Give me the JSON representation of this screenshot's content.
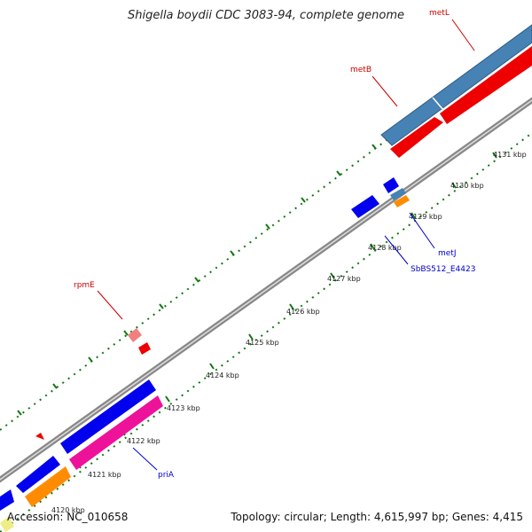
{
  "title": "Shigella boydii CDC 3083-94, complete genome",
  "footer": {
    "accession": "Accession: NC_010658",
    "summary": "Topology: circular; Length: 4,615,997 bp; Genes: 4,415"
  },
  "kbp_labels": [
    "4120 kbp",
    "4121 kbp",
    "4122 kbp",
    "4123 kbp",
    "4124 kbp",
    "4125 kbp",
    "4126 kbp",
    "4127 kbp",
    "4128 kbp",
    "4129 kbp",
    "4130 kbp",
    "4131 kbp"
  ],
  "gene_labels": {
    "metL": "metL",
    "metB": "metB",
    "rpmE": "rpmE",
    "metJ": "metJ",
    "sbbs": "SbBS512_E4423",
    "priA": "priA"
  },
  "colors": {
    "red_label": "#cc0000",
    "blue_label": "#0000cc",
    "steelblue": "#4682b4",
    "red": "#ee0000",
    "blue": "#0000ee",
    "pink": "#ee1199",
    "orange": "#ff8c00",
    "tick_green": "#116611"
  }
}
